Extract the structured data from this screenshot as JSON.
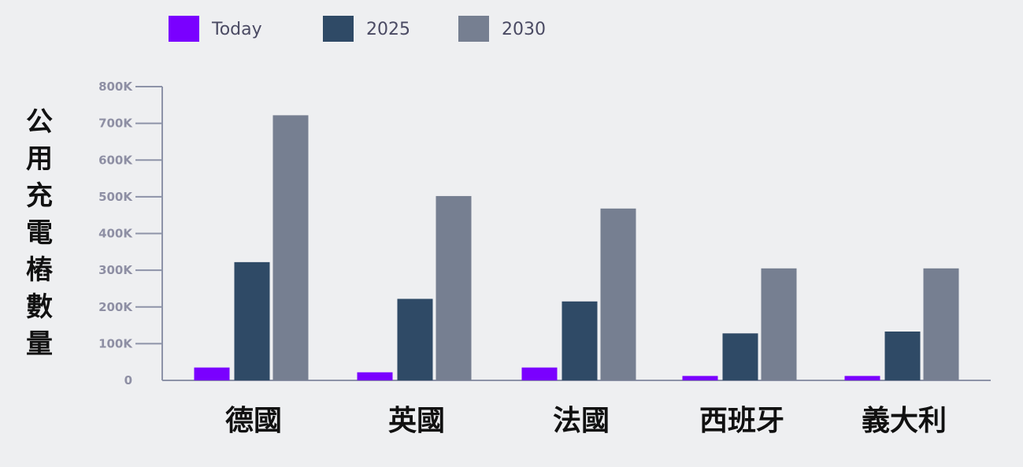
{
  "chart_data": {
    "type": "bar",
    "categories": [
      "德國",
      "英國",
      "法國",
      "西班牙",
      "義大利"
    ],
    "series": [
      {
        "name": "Today",
        "color": "#7a00ff",
        "values": [
          35000,
          22000,
          35000,
          12000,
          12000
        ]
      },
      {
        "name": "2025",
        "color": "#2f4a66",
        "values": [
          322000,
          222000,
          215000,
          128000,
          133000
        ]
      },
      {
        "name": "2030",
        "color": "#767f91",
        "values": [
          722000,
          502000,
          468000,
          305000,
          305000
        ]
      }
    ],
    "ylabel": "公用充電樁數量",
    "ylim": [
      0,
      800000
    ],
    "yticks": [
      {
        "value": 0,
        "label": "0"
      },
      {
        "value": 100000,
        "label": "100K"
      },
      {
        "value": 200000,
        "label": "200K"
      },
      {
        "value": 300000,
        "label": "300K"
      },
      {
        "value": 400000,
        "label": "400K"
      },
      {
        "value": 500000,
        "label": "500K"
      },
      {
        "value": 600000,
        "label": "600K"
      },
      {
        "value": 700000,
        "label": "700K"
      },
      {
        "value": 800000,
        "label": "800K"
      }
    ],
    "legend_position": "top-left",
    "grid": false,
    "axis_color": "#8d93a8"
  }
}
